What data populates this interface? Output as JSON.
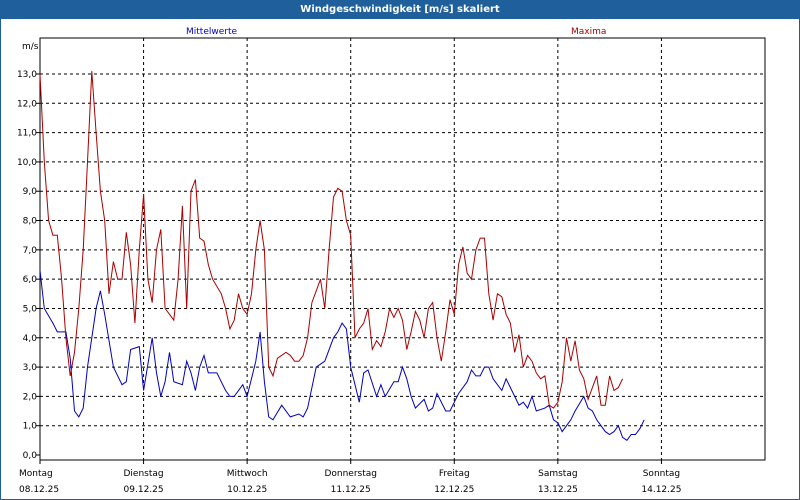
{
  "window": {
    "title": "Windgeschwindigkeit [m/s] skaliert"
  },
  "chart_data": {
    "type": "line",
    "title": "Windgeschwindigkeit [m/s] skaliert",
    "ylabel": "m/s",
    "ylim": [
      0,
      14
    ],
    "yticks": [
      "0,0",
      "1,0",
      "2,0",
      "3,0",
      "4,0",
      "5,0",
      "6,0",
      "7,0",
      "8,0",
      "9,0",
      "10,0",
      "11,0",
      "12,0",
      "13,0"
    ],
    "grid": true,
    "xrange_hours": [
      0,
      168
    ],
    "days": [
      {
        "name": "Montag",
        "date": "08.12.25"
      },
      {
        "name": "Dienstag",
        "date": "09.12.25"
      },
      {
        "name": "Mittwoch",
        "date": "10.12.25"
      },
      {
        "name": "Donnerstag",
        "date": "11.12.25"
      },
      {
        "name": "Freitag",
        "date": "12.12.25"
      },
      {
        "name": "Samstag",
        "date": "13.12.25"
      },
      {
        "name": "Sonntag",
        "date": "14.12.25"
      }
    ],
    "series": [
      {
        "name": "Mittelwerte",
        "color": "#0000c0",
        "values": [
          [
            0,
            6.3
          ],
          [
            1,
            5
          ],
          [
            3,
            4.5
          ],
          [
            4,
            4.2
          ],
          [
            6,
            4.2
          ],
          [
            7,
            3.3
          ],
          [
            8,
            1.5
          ],
          [
            9,
            1.3
          ],
          [
            10,
            1.6
          ],
          [
            11,
            3.0
          ],
          [
            13,
            5.0
          ],
          [
            14,
            5.6
          ],
          [
            15,
            4.8
          ],
          [
            17,
            3.0
          ],
          [
            19,
            2.4
          ],
          [
            20,
            2.5
          ],
          [
            21,
            3.6
          ],
          [
            23,
            3.7
          ],
          [
            24,
            2.2
          ],
          [
            26,
            4.0
          ],
          [
            27,
            2.8
          ],
          [
            28,
            2.0
          ],
          [
            29,
            2.5
          ],
          [
            30,
            3.5
          ],
          [
            31,
            2.5
          ],
          [
            33,
            2.4
          ],
          [
            34,
            3.2
          ],
          [
            35,
            2.8
          ],
          [
            36,
            2.2
          ],
          [
            37,
            3.0
          ],
          [
            38,
            3.4
          ],
          [
            39,
            2.8
          ],
          [
            41,
            2.8
          ],
          [
            43,
            2.2
          ],
          [
            44,
            2.0
          ],
          [
            45,
            2.0
          ],
          [
            47,
            2.4
          ],
          [
            48,
            2.0
          ],
          [
            50,
            3.2
          ],
          [
            51,
            4.2
          ],
          [
            52,
            2.5
          ],
          [
            53,
            1.3
          ],
          [
            54,
            1.2
          ],
          [
            56,
            1.7
          ],
          [
            58,
            1.3
          ],
          [
            60,
            1.4
          ],
          [
            61,
            1.3
          ],
          [
            62,
            1.6
          ],
          [
            64,
            3.0
          ],
          [
            66,
            3.2
          ],
          [
            68,
            4.0
          ],
          [
            69,
            4.2
          ],
          [
            70,
            4.5
          ],
          [
            71,
            4.3
          ],
          [
            72,
            3.0
          ],
          [
            74,
            1.8
          ],
          [
            75,
            2.8
          ],
          [
            76,
            2.9
          ],
          [
            78,
            2.0
          ],
          [
            79,
            2.4
          ],
          [
            80,
            2.0
          ],
          [
            82,
            2.5
          ],
          [
            83,
            2.5
          ],
          [
            84,
            3.0
          ],
          [
            85,
            2.6
          ],
          [
            86,
            2.0
          ],
          [
            87,
            1.6
          ],
          [
            89,
            1.9
          ],
          [
            90,
            1.5
          ],
          [
            91,
            1.6
          ],
          [
            92,
            2.1
          ],
          [
            94,
            1.5
          ],
          [
            95,
            1.5
          ],
          [
            96,
            1.8
          ],
          [
            97,
            2.1
          ],
          [
            99,
            2.5
          ],
          [
            100,
            2.9
          ],
          [
            101,
            2.7
          ],
          [
            102,
            2.7
          ],
          [
            103,
            3.0
          ],
          [
            104,
            3.0
          ],
          [
            105,
            2.6
          ],
          [
            107,
            2.2
          ],
          [
            108,
            2.6
          ],
          [
            110,
            2.0
          ],
          [
            111,
            1.7
          ],
          [
            112,
            1.8
          ],
          [
            113,
            1.6
          ],
          [
            114,
            2.0
          ],
          [
            115,
            1.5
          ],
          [
            117,
            1.6
          ],
          [
            118,
            1.7
          ],
          [
            119,
            1.2
          ],
          [
            120,
            1.1
          ],
          [
            121,
            0.8
          ],
          [
            122,
            1.0
          ],
          [
            123,
            1.2
          ],
          [
            124,
            1.5
          ],
          [
            126,
            2.0
          ],
          [
            127,
            1.6
          ],
          [
            128,
            1.5
          ],
          [
            129,
            1.2
          ],
          [
            130,
            1.0
          ],
          [
            131,
            0.8
          ],
          [
            132,
            0.7
          ],
          [
            133,
            0.8
          ],
          [
            134,
            1.0
          ],
          [
            135,
            0.6
          ],
          [
            136,
            0.5
          ],
          [
            137,
            0.7
          ],
          [
            138,
            0.7
          ],
          [
            139,
            0.9
          ],
          [
            140,
            1.2
          ]
        ]
      },
      {
        "name": "Maxima",
        "color": "#aa0000",
        "values": [
          [
            0,
            13.0
          ],
          [
            1,
            10.0
          ],
          [
            2,
            8.0
          ],
          [
            3,
            7.5
          ],
          [
            4,
            7.5
          ],
          [
            5,
            6.0
          ],
          [
            6,
            4.0
          ],
          [
            7,
            2.7
          ],
          [
            8,
            3.5
          ],
          [
            9,
            5.0
          ],
          [
            10,
            7.0
          ],
          [
            11,
            10.0
          ],
          [
            12,
            13.1
          ],
          [
            13,
            11.0
          ],
          [
            14,
            9.0
          ],
          [
            15,
            8.0
          ],
          [
            16,
            5.5
          ],
          [
            17,
            6.6
          ],
          [
            18,
            6.0
          ],
          [
            19,
            6.0
          ],
          [
            20,
            7.6
          ],
          [
            21,
            6.5
          ],
          [
            22,
            4.5
          ],
          [
            23,
            7.0
          ],
          [
            24,
            8.9
          ],
          [
            25,
            6.0
          ],
          [
            26,
            5.2
          ],
          [
            27,
            7.0
          ],
          [
            28,
            7.7
          ],
          [
            29,
            5.0
          ],
          [
            30,
            4.8
          ],
          [
            31,
            4.6
          ],
          [
            32,
            6.0
          ],
          [
            33,
            8.5
          ],
          [
            34,
            5.0
          ],
          [
            35,
            9.0
          ],
          [
            36,
            9.4
          ],
          [
            37,
            7.4
          ],
          [
            38,
            7.3
          ],
          [
            39,
            6.5
          ],
          [
            40,
            6.0
          ],
          [
            42,
            5.5
          ],
          [
            43,
            5.0
          ],
          [
            44,
            4.3
          ],
          [
            45,
            4.6
          ],
          [
            46,
            5.5
          ],
          [
            47,
            5.0
          ],
          [
            48,
            4.8
          ],
          [
            49,
            5.5
          ],
          [
            50,
            7.0
          ],
          [
            51,
            8.0
          ],
          [
            52,
            7.0
          ],
          [
            53,
            3.0
          ],
          [
            54,
            2.7
          ],
          [
            55,
            3.3
          ],
          [
            57,
            3.5
          ],
          [
            58,
            3.4
          ],
          [
            59,
            3.2
          ],
          [
            60,
            3.2
          ],
          [
            61,
            3.4
          ],
          [
            62,
            4.0
          ],
          [
            63,
            5.2
          ],
          [
            64,
            5.6
          ],
          [
            65,
            6.0
          ],
          [
            66,
            5.0
          ],
          [
            67,
            7.0
          ],
          [
            68,
            8.8
          ],
          [
            69,
            9.1
          ],
          [
            70,
            9.0
          ],
          [
            71,
            8.0
          ],
          [
            72,
            7.5
          ],
          [
            73,
            4.0
          ],
          [
            74,
            4.3
          ],
          [
            75,
            4.5
          ],
          [
            76,
            5.0
          ],
          [
            77,
            3.6
          ],
          [
            78,
            3.9
          ],
          [
            79,
            3.7
          ],
          [
            80,
            4.2
          ],
          [
            81,
            5.0
          ],
          [
            82,
            4.7
          ],
          [
            83,
            5.0
          ],
          [
            84,
            4.6
          ],
          [
            85,
            3.6
          ],
          [
            86,
            4.2
          ],
          [
            87,
            4.9
          ],
          [
            88,
            4.6
          ],
          [
            89,
            4.0
          ],
          [
            90,
            5.0
          ],
          [
            91,
            5.2
          ],
          [
            92,
            4.0
          ],
          [
            93,
            3.2
          ],
          [
            94,
            4.2
          ],
          [
            95,
            5.3
          ],
          [
            96,
            4.8
          ],
          [
            97,
            6.5
          ],
          [
            98,
            7.1
          ],
          [
            99,
            6.2
          ],
          [
            100,
            6.0
          ],
          [
            101,
            7.0
          ],
          [
            102,
            7.4
          ],
          [
            103,
            7.4
          ],
          [
            104,
            5.5
          ],
          [
            105,
            4.6
          ],
          [
            106,
            5.5
          ],
          [
            107,
            5.4
          ],
          [
            108,
            4.8
          ],
          [
            109,
            4.5
          ],
          [
            110,
            3.5
          ],
          [
            111,
            4.1
          ],
          [
            112,
            3.0
          ],
          [
            113,
            3.4
          ],
          [
            114,
            3.2
          ],
          [
            115,
            2.8
          ],
          [
            116,
            2.6
          ],
          [
            117,
            2.7
          ],
          [
            118,
            1.7
          ],
          [
            119,
            1.6
          ],
          [
            120,
            1.8
          ],
          [
            121,
            2.5
          ],
          [
            122,
            4.0
          ],
          [
            123,
            3.2
          ],
          [
            124,
            3.9
          ],
          [
            125,
            2.9
          ],
          [
            126,
            2.6
          ],
          [
            127,
            1.9
          ],
          [
            128,
            2.3
          ],
          [
            129,
            2.7
          ],
          [
            130,
            1.7
          ],
          [
            131,
            1.7
          ],
          [
            132,
            2.7
          ],
          [
            133,
            2.2
          ],
          [
            134,
            2.3
          ],
          [
            135,
            2.6
          ]
        ]
      }
    ]
  }
}
